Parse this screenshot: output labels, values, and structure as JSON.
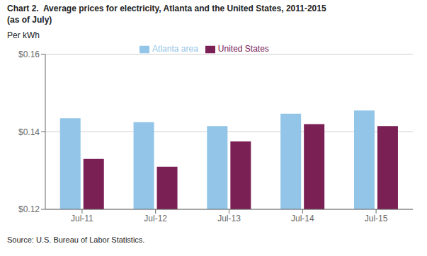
{
  "chart_data": {
    "type": "bar",
    "title": "Chart 2.  Average prices for electricity, Atlanta and the United States, 2011-2015",
    "subtitle": "(as of July)",
    "ylabel": "Per kWh",
    "source": "Source: U.S. Bureau of Labor Statistics.",
    "categories": [
      "Jul-11",
      "Jul-12",
      "Jul-13",
      "Jul-14",
      "Jul-15"
    ],
    "series": [
      {
        "name": "Atlanta area",
        "color": "#92C5E8",
        "values": [
          0.1435,
          0.1425,
          0.1415,
          0.1447,
          0.1455
        ]
      },
      {
        "name": "United States",
        "color": "#7B2054",
        "values": [
          0.133,
          0.131,
          0.1375,
          0.142,
          0.1415
        ]
      }
    ],
    "ylim": [
      0.12,
      0.16
    ],
    "yticks": [
      {
        "value": 0.12,
        "label": "$0.12"
      },
      {
        "value": 0.14,
        "label": "$0.14"
      },
      {
        "value": 0.16,
        "label": "$0.16"
      }
    ],
    "grid": true,
    "legend": "top"
  }
}
